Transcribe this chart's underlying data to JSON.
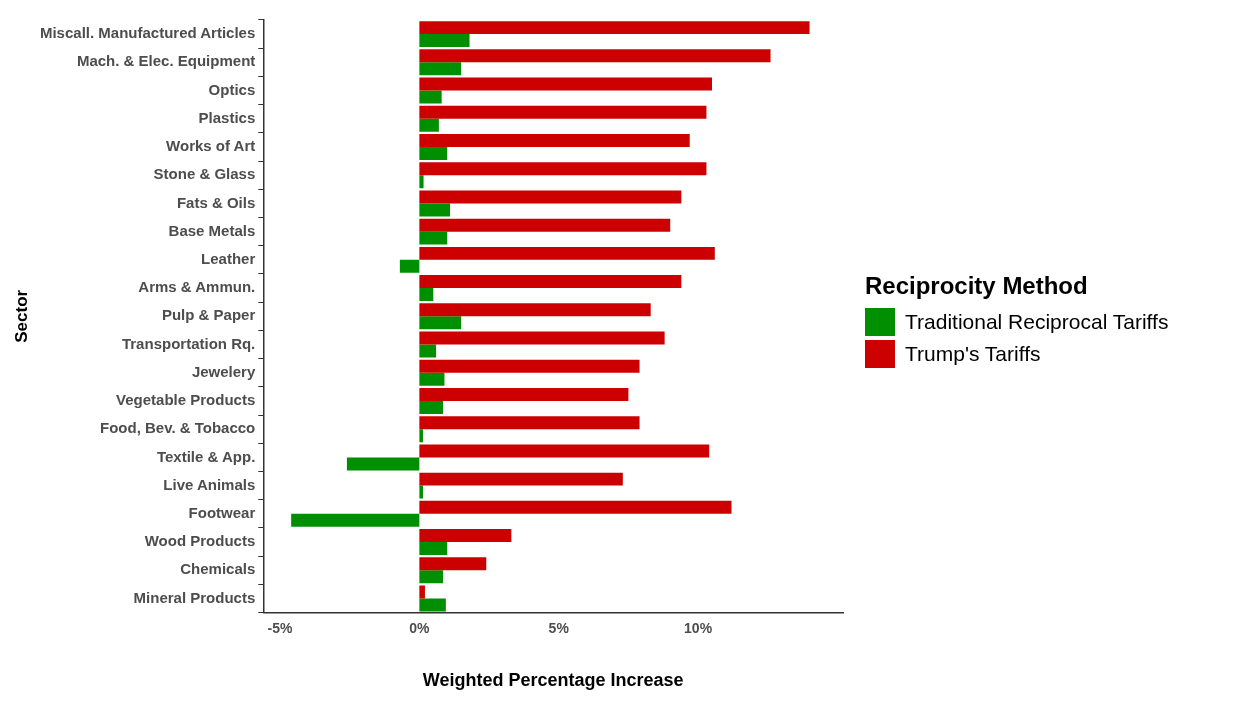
{
  "chart_data": {
    "type": "bar",
    "orientation": "horizontal",
    "xlabel": "Weighted Percentage Increase",
    "ylabel": "Sector",
    "legend_title": "Reciprocity Method",
    "legend": "right",
    "categories": [
      "Miscall. Manufactured Articles",
      "Mach. & Elec. Equipment",
      "Optics",
      "Plastics",
      "Works of Art",
      "Stone & Glass",
      "Fats & Oils",
      "Base Metals",
      "Leather",
      "Arms & Ammun.",
      "Pulp & Paper",
      "Transportation Rq.",
      "Jewelery",
      "Vegetable Products",
      "Food, Bev. & Tobacco",
      "Textile & App.",
      "Live Animals",
      "Footwear",
      "Wood Products",
      "Chemicals",
      "Mineral Products"
    ],
    "series": [
      {
        "name": "Traditional Reciprocal Tariffs",
        "color": "#008f00",
        "values": [
          1.8,
          1.5,
          0.8,
          0.7,
          1.0,
          0.15,
          1.1,
          1.0,
          -0.7,
          0.5,
          1.5,
          0.6,
          0.9,
          0.85,
          0.13,
          -2.6,
          0.13,
          -4.6,
          1.0,
          0.85,
          0.95
        ]
      },
      {
        "name": "Trump's Tariffs",
        "color": "#cc0000",
        "values": [
          14.0,
          12.6,
          10.5,
          10.3,
          9.7,
          10.3,
          9.4,
          9.0,
          10.6,
          9.4,
          8.3,
          8.8,
          7.9,
          7.5,
          7.9,
          10.4,
          7.3,
          11.2,
          3.3,
          2.4,
          0.2
        ]
      }
    ],
    "xlim": [
      -5.6,
      15.2
    ],
    "xticks": [
      {
        "value": -5,
        "label": "-5%"
      },
      {
        "value": 0,
        "label": "0%"
      },
      {
        "value": 5,
        "label": "5%"
      },
      {
        "value": 10,
        "label": "10%"
      }
    ],
    "grid": false
  }
}
